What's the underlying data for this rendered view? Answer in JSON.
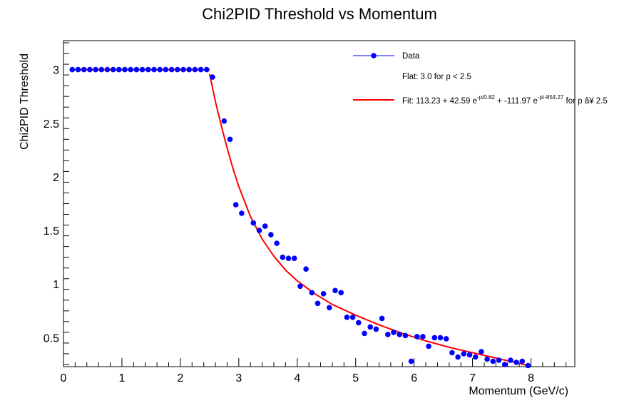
{
  "chart_data": {
    "type": "scatter",
    "title": "Chi2PID Threshold vs Momentum",
    "xlabel": "Momentum (GeV/c)",
    "ylabel": "Chi2PID Threshold",
    "xlim": [
      0,
      8.75
    ],
    "ylim": [
      0.23,
      3.27
    ],
    "x_ticks": [
      "0",
      "1",
      "2",
      "3",
      "4",
      "5",
      "6",
      "7",
      "8"
    ],
    "y_ticks": [
      "0.5",
      "1",
      "1.5",
      "2",
      "2.5",
      "3"
    ],
    "legend": {
      "placement": "top-right",
      "data_label": "Data",
      "flat_label": "Flat: 3.0 for p < 2.5",
      "fit_label": {
        "a": "Fit: 113.23 + 42.59 e",
        "e1": "-p/0.82",
        "b": " + -111.97 e",
        "e2": "-p/-854.27",
        "c": " for p â¥ 2.5"
      }
    },
    "series": [
      {
        "name": "Data",
        "color": "#0000ff",
        "marker": "circle",
        "line_in_legend": true,
        "x": [
          0.15,
          0.25,
          0.35,
          0.45,
          0.55,
          0.65,
          0.75,
          0.85,
          0.95,
          1.05,
          1.15,
          1.25,
          1.35,
          1.45,
          1.55,
          1.65,
          1.75,
          1.85,
          1.95,
          2.05,
          2.15,
          2.25,
          2.35,
          2.45,
          2.55,
          2.75,
          2.85,
          2.95,
          3.05,
          3.25,
          3.35,
          3.45,
          3.55,
          3.65,
          3.75,
          3.85,
          3.95,
          4.05,
          4.15,
          4.25,
          4.35,
          4.45,
          4.55,
          4.65,
          4.75,
          4.85,
          4.95,
          5.05,
          5.15,
          5.25,
          5.35,
          5.45,
          5.55,
          5.65,
          5.75,
          5.85,
          5.95,
          6.05,
          6.15,
          6.25,
          6.35,
          6.45,
          6.55,
          6.65,
          6.75,
          6.85,
          6.95,
          7.05,
          7.15,
          7.25,
          7.35,
          7.45,
          7.55,
          7.65,
          7.75,
          7.85,
          7.95
        ],
        "y": [
          3.0,
          3.0,
          3.0,
          3.0,
          3.0,
          3.0,
          3.0,
          3.0,
          3.0,
          3.0,
          3.0,
          3.0,
          3.0,
          3.0,
          3.0,
          3.0,
          3.0,
          3.0,
          3.0,
          3.0,
          3.0,
          3.0,
          3.0,
          3.0,
          2.93,
          2.52,
          2.35,
          1.74,
          1.66,
          1.57,
          1.5,
          1.54,
          1.46,
          1.38,
          1.25,
          1.24,
          1.24,
          0.98,
          1.14,
          0.92,
          0.82,
          0.91,
          0.78,
          0.94,
          0.92,
          0.69,
          0.69,
          0.64,
          0.54,
          0.6,
          0.58,
          0.68,
          0.53,
          0.55,
          0.53,
          0.52,
          0.28,
          0.51,
          0.51,
          0.42,
          0.5,
          0.5,
          0.49,
          0.36,
          0.32,
          0.35,
          0.34,
          0.32,
          0.37,
          0.3,
          0.28,
          0.29,
          0.25,
          0.29,
          0.27,
          0.28,
          0.24
        ]
      },
      {
        "name": "Flat: 3.0 for p < 2.5",
        "color": "#ff0000",
        "kind": "line",
        "x": [
          0.15,
          2.5
        ],
        "y": [
          3.0,
          3.0
        ]
      },
      {
        "name": "Fit: 113.23 + 42.59 e^-p/0.82 + -111.97 e^-p/-854.27 for p â¥ 2.5",
        "color": "#ff0000",
        "kind": "line",
        "x": [
          2.5,
          2.6,
          2.7,
          2.8,
          2.9,
          3.0,
          3.2,
          3.4,
          3.6,
          3.8,
          4.0,
          4.3,
          4.6,
          5.0,
          5.4,
          5.8,
          6.2,
          6.6,
          7.0,
          7.4,
          7.8,
          7.95
        ],
        "y": [
          2.96,
          2.7,
          2.48,
          2.27,
          2.08,
          1.91,
          1.63,
          1.42,
          1.26,
          1.13,
          1.03,
          0.91,
          0.81,
          0.71,
          0.62,
          0.54,
          0.47,
          0.41,
          0.36,
          0.31,
          0.26,
          0.24
        ]
      }
    ]
  }
}
